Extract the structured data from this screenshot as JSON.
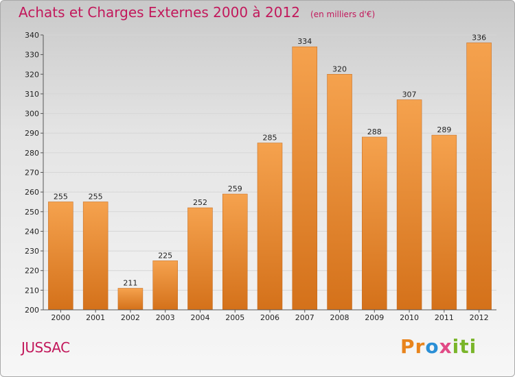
{
  "chart_data": {
    "type": "bar",
    "title": "Achats et Charges Externes 2000 à 2012",
    "subtitle": "(en milliers d'€)",
    "categories": [
      "2000",
      "2001",
      "2002",
      "2003",
      "2004",
      "2005",
      "2006",
      "2007",
      "2008",
      "2009",
      "2010",
      "2011",
      "2012"
    ],
    "values": [
      255,
      255,
      211,
      225,
      252,
      259,
      285,
      334,
      320,
      288,
      307,
      289,
      336
    ],
    "ylim": [
      200,
      340
    ],
    "yticks": [
      200,
      210,
      220,
      230,
      240,
      250,
      260,
      270,
      280,
      290,
      300,
      310,
      320,
      330,
      340
    ],
    "grid": true,
    "bar_color_top": "#f5a24e",
    "bar_color_bottom": "#d4711a"
  },
  "location": "JUSSAC",
  "logo": {
    "text": "Proxiti",
    "parts": [
      "Pr",
      "o",
      "x",
      "iti"
    ]
  }
}
